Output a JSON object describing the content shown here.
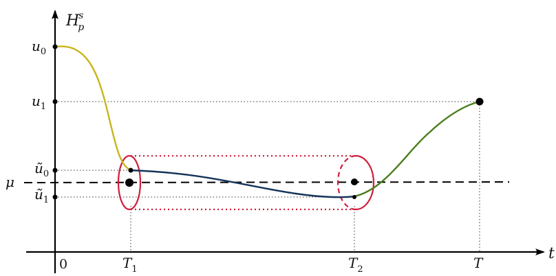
{
  "axes": {
    "y_label": "H",
    "y_label_sub": "p",
    "y_label_sup": "s",
    "x_label": "t"
  },
  "y_ticks": {
    "u0": {
      "base": "u",
      "sub": "0"
    },
    "u1": {
      "base": "u",
      "sub": "1"
    },
    "u0_tilde": {
      "base": "ũ",
      "sub": "0"
    },
    "u1_tilde": {
      "base": "ũ",
      "sub": "1"
    },
    "mu": "μ"
  },
  "x_ticks": {
    "origin": "0",
    "t1": {
      "base": "T",
      "sub": "1"
    },
    "t2": {
      "base": "T",
      "sub": "2"
    },
    "t_end": "T"
  },
  "colors": {
    "segment_1": "#c8b51a",
    "segment_2": "#14335a",
    "segment_3": "#4a7d1a",
    "tube": "#d01c3a",
    "axis": "#000000",
    "guide": "#333333"
  }
}
